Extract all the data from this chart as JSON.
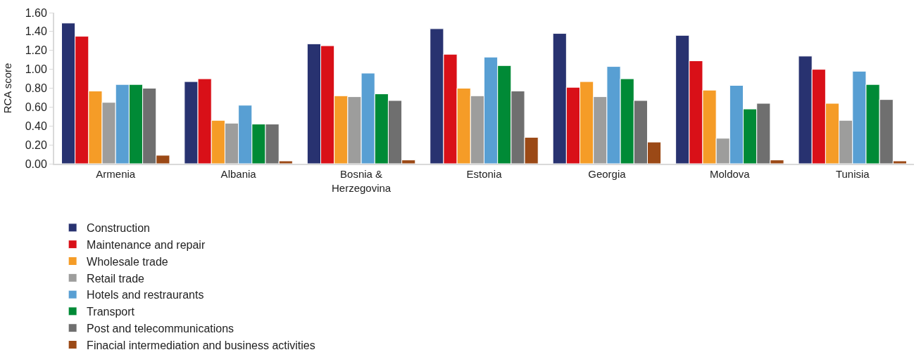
{
  "chart_data": {
    "type": "bar",
    "ylabel": "RCA score",
    "categories": [
      "Armenia",
      "Albania",
      "Bosnia &\nHerzegovina",
      "Estonia",
      "Georgia",
      "Moldova",
      "Tunisia"
    ],
    "series": [
      {
        "name": "Construction",
        "color": "#283270",
        "values": [
          1.49,
          0.87,
          1.27,
          1.43,
          1.38,
          1.36,
          1.14
        ]
      },
      {
        "name": "Maintenance and repair",
        "color": "#d91018",
        "values": [
          1.35,
          0.9,
          1.25,
          1.16,
          0.81,
          1.09,
          1.0
        ]
      },
      {
        "name": "Wholesale trade",
        "color": "#f59c27",
        "values": [
          0.77,
          0.46,
          0.72,
          0.8,
          0.87,
          0.78,
          0.64
        ]
      },
      {
        "name": "Retail trade",
        "color": "#9d9d9c",
        "values": [
          0.65,
          0.43,
          0.71,
          0.72,
          0.71,
          0.27,
          0.46
        ]
      },
      {
        "name": "Hotels and restraurants",
        "color": "#589fd3",
        "values": [
          0.84,
          0.62,
          0.96,
          1.13,
          1.03,
          0.83,
          0.98
        ]
      },
      {
        "name": "Transport",
        "color": "#008a36",
        "values": [
          0.84,
          0.42,
          0.74,
          1.04,
          0.9,
          0.58,
          0.84
        ]
      },
      {
        "name": "Post and telecommunications",
        "color": "#6f6f6f",
        "values": [
          0.8,
          0.42,
          0.67,
          0.77,
          0.67,
          0.64,
          0.68
        ]
      },
      {
        "name": "Finacial intermediation and business activities",
        "color": "#9b4916",
        "values": [
          0.09,
          0.03,
          0.04,
          0.28,
          0.23,
          0.04,
          0.03
        ]
      }
    ],
    "ylim": [
      0,
      1.6
    ],
    "yticks": [
      {
        "value": 0,
        "label": "0.00"
      },
      {
        "value": 0.2,
        "label": "0.20"
      },
      {
        "value": 0.4,
        "label": "0.40"
      },
      {
        "value": 0.6,
        "label": "0.60"
      },
      {
        "value": 0.8,
        "label": "0.80"
      },
      {
        "value": 1.0,
        "label": "1.00"
      },
      {
        "value": 1.2,
        "label": "1.20"
      },
      {
        "value": 1.4,
        "label": "1.40"
      },
      {
        "value": 1.6,
        "label": "1.60"
      }
    ],
    "legend": "bottom"
  }
}
